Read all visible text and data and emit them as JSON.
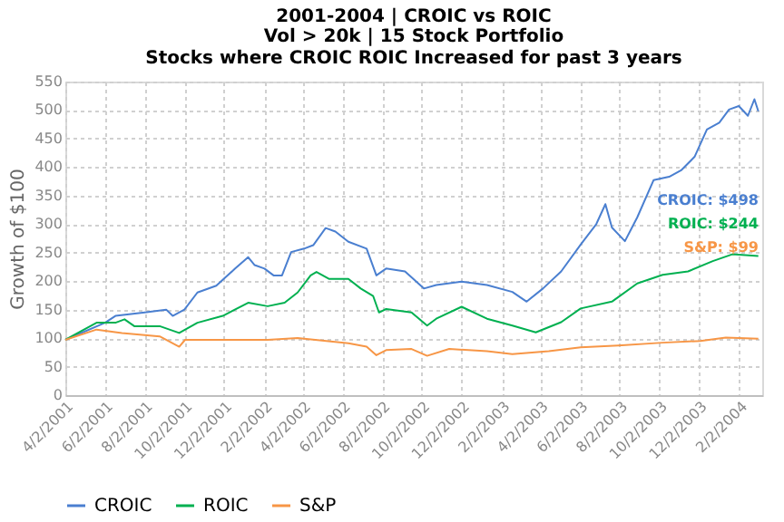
{
  "chart_data": {
    "type": "line",
    "title": "2001-2004 | CROIC vs ROIC",
    "subtitle": "Vol > 20k | 15 Stock Portfolio\nStocks where CROIC ROIC Increased for past 3 years",
    "ylabel": "Growth of $100",
    "ylim": [
      0,
      550
    ],
    "yticks": [
      0,
      50,
      100,
      150,
      200,
      250,
      300,
      350,
      400,
      450,
      500,
      550
    ],
    "xlim": [
      "2001-04-02",
      "2004-03-08"
    ],
    "xticks": [
      {
        "value": "2001-04-02",
        "label": "4/2/2001"
      },
      {
        "value": "2001-06-02",
        "label": "6/2/2001"
      },
      {
        "value": "2001-08-02",
        "label": "8/2/2001"
      },
      {
        "value": "2001-10-02",
        "label": "10/2/2001"
      },
      {
        "value": "2001-12-02",
        "label": "12/2/2001"
      },
      {
        "value": "2002-02-02",
        "label": "2/2/2002"
      },
      {
        "value": "2002-04-02",
        "label": "4/2/2002"
      },
      {
        "value": "2002-06-02",
        "label": "6/2/2002"
      },
      {
        "value": "2002-08-02",
        "label": "8/2/2002"
      },
      {
        "value": "2002-10-02",
        "label": "10/2/2002"
      },
      {
        "value": "2002-12-02",
        "label": "12/2/2002"
      },
      {
        "value": "2003-02-02",
        "label": "2/2/2003"
      },
      {
        "value": "2003-04-02",
        "label": "4/2/2003"
      },
      {
        "value": "2003-06-02",
        "label": "6/2/2003"
      },
      {
        "value": "2003-08-02",
        "label": "8/2/2003"
      },
      {
        "value": "2003-10-02",
        "label": "10/2/2003"
      },
      {
        "value": "2003-12-02",
        "label": "12/2/2003"
      },
      {
        "value": "2004-02-02",
        "label": "2/2/2004"
      }
    ],
    "grid": true,
    "legend": "bottom",
    "series": [
      {
        "name": "CROIC",
        "color": "#4a7fd0",
        "x": [
          "2001-04-02",
          "2001-06-02",
          "2001-06-18",
          "2001-08-02",
          "2001-09-04",
          "2001-09-14",
          "2001-10-02",
          "2001-10-22",
          "2001-11-20",
          "2001-12-19",
          "2002-01-08",
          "2002-01-18",
          "2002-02-02",
          "2002-02-16",
          "2002-03-01",
          "2002-03-15",
          "2002-04-04",
          "2002-04-18",
          "2002-05-07",
          "2002-05-22",
          "2002-06-11",
          "2002-07-09",
          "2002-07-24",
          "2002-08-08",
          "2002-09-06",
          "2002-10-05",
          "2002-10-24",
          "2002-12-02",
          "2003-01-10",
          "2003-02-18",
          "2003-03-12",
          "2003-04-06",
          "2003-05-04",
          "2003-06-03",
          "2003-06-27",
          "2003-07-11",
          "2003-07-21",
          "2003-08-10",
          "2003-08-29",
          "2003-09-23",
          "2003-10-17",
          "2003-11-05",
          "2003-11-25",
          "2003-12-14",
          "2004-01-02",
          "2004-01-17",
          "2004-02-01",
          "2004-02-15",
          "2004-02-25",
          "2004-03-02"
        ],
        "values": [
          97,
          127,
          139,
          145,
          150,
          139,
          150,
          180,
          192,
          222,
          242,
          228,
          222,
          210,
          210,
          251,
          257,
          263,
          293,
          287,
          269,
          257,
          210,
          222,
          217,
          187,
          193,
          199,
          193,
          181,
          164,
          187,
          217,
          264,
          300,
          335,
          294,
          270,
          312,
          377,
          383,
          395,
          418,
          466,
          478,
          501,
          507,
          490,
          519,
          498
        ]
      },
      {
        "name": "ROIC",
        "color": "#00b050",
        "x": [
          "2001-04-02",
          "2001-05-20",
          "2001-06-18",
          "2001-07-02",
          "2001-07-17",
          "2001-08-25",
          "2001-09-24",
          "2001-10-22",
          "2001-11-30",
          "2002-01-08",
          "2002-02-07",
          "2002-03-05",
          "2002-03-25",
          "2002-04-14",
          "2002-04-23",
          "2002-05-12",
          "2002-06-11",
          "2002-06-30",
          "2002-07-19",
          "2002-07-28",
          "2002-08-08",
          "2002-09-16",
          "2002-10-10",
          "2002-10-24",
          "2002-12-02",
          "2003-01-10",
          "2003-02-18",
          "2003-03-26",
          "2003-05-04",
          "2003-06-03",
          "2003-07-21",
          "2003-08-29",
          "2003-10-07",
          "2003-11-15",
          "2003-12-23",
          "2004-01-22",
          "2004-03-02"
        ],
        "values": [
          97,
          127,
          127,
          133,
          121,
          121,
          109,
          127,
          139,
          162,
          156,
          162,
          180,
          210,
          216,
          204,
          204,
          187,
          174,
          145,
          151,
          145,
          122,
          134,
          155,
          134,
          122,
          110,
          128,
          152,
          164,
          196,
          211,
          217,
          235,
          247,
          244
        ]
      },
      {
        "name": "S&P",
        "color": "#f79646",
        "x": [
          "2001-04-02",
          "2001-05-20",
          "2001-06-28",
          "2001-08-25",
          "2001-09-24",
          "2001-10-03",
          "2001-11-30",
          "2002-02-07",
          "2002-03-25",
          "2002-06-11",
          "2002-07-09",
          "2002-07-24",
          "2002-08-08",
          "2002-09-16",
          "2002-10-10",
          "2002-11-13",
          "2003-01-10",
          "2003-02-18",
          "2003-04-15",
          "2003-06-03",
          "2003-07-31",
          "2003-10-07",
          "2003-12-04",
          "2004-01-12",
          "2004-03-02"
        ],
        "values": [
          97,
          115,
          109,
          103,
          85,
          97,
          97,
          97,
          100,
          91,
          85,
          70,
          79,
          81,
          69,
          81,
          77,
          72,
          77,
          84,
          87,
          92,
          95,
          101,
          99
        ]
      }
    ],
    "annotations": [
      "CROIC: $498",
      "ROIC: $244",
      "S&P: $99"
    ]
  }
}
